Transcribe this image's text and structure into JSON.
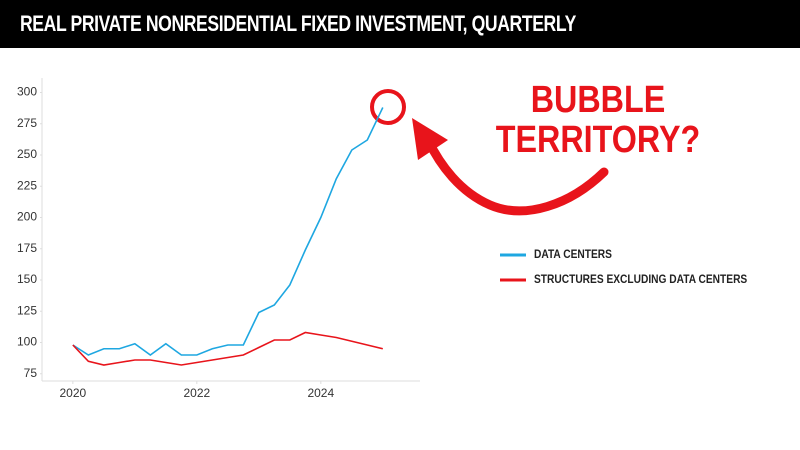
{
  "chart_data": {
    "type": "line",
    "title": "REAL PRIVATE NONRESIDENTIAL FIXED INVESTMENT, QUARTERLY",
    "annotation_lines": [
      "BUBBLE",
      "TERRITORY?"
    ],
    "x": [
      2020,
      2020.25,
      2020.5,
      2020.75,
      2021,
      2021.25,
      2021.5,
      2021.75,
      2022,
      2022.25,
      2022.5,
      2022.75,
      2023,
      2023.25,
      2023.5,
      2023.75,
      2024,
      2024.25,
      2024.5,
      2024.75,
      2025
    ],
    "series": [
      {
        "name": "DATA CENTERS",
        "color": "#1ea7e1",
        "values": [
          98,
          90,
          95,
          95,
          99,
          90,
          99,
          90,
          90,
          95,
          98,
          98,
          124,
          130,
          146,
          174,
          200,
          231,
          254,
          262,
          288
        ]
      },
      {
        "name": "STRUCTURES EXCLUDING DATA CENTERS",
        "color": "#e8141b",
        "values": [
          98,
          85,
          82,
          84,
          86,
          86,
          84,
          82,
          84,
          86,
          88,
          90,
          96,
          102,
          102,
          108,
          106,
          104,
          101,
          98,
          95
        ]
      }
    ],
    "xlim": [
      2019.47,
      2025.6
    ],
    "xticks": [
      2020,
      2022,
      2024
    ],
    "ylim": [
      70,
      310
    ],
    "yticks": [
      75,
      100,
      125,
      150,
      175,
      200,
      225,
      250,
      275,
      300
    ],
    "legend": "right"
  }
}
